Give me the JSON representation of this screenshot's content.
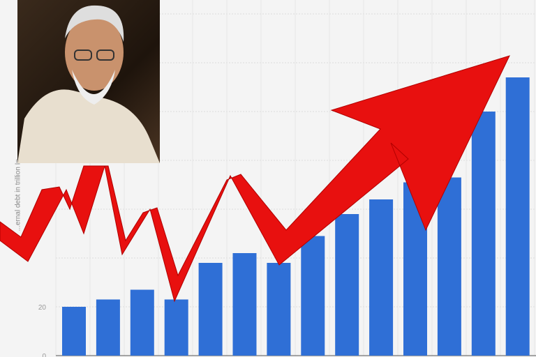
{
  "chart_data": {
    "type": "bar",
    "ylabel": "...ernal debt in trillion In...",
    "yticks": [
      0,
      20
    ],
    "ylim": [
      0,
      145
    ],
    "grid": true,
    "bar_color": "#2f6fd6",
    "values": [
      20,
      23,
      27,
      23,
      38,
      42,
      38,
      49,
      58,
      64,
      71,
      73,
      100,
      114
    ]
  },
  "overlay": {
    "arrow_color": "#e8100f",
    "arrow_trend": "rising"
  },
  "photo": {
    "subject": "portrait"
  }
}
